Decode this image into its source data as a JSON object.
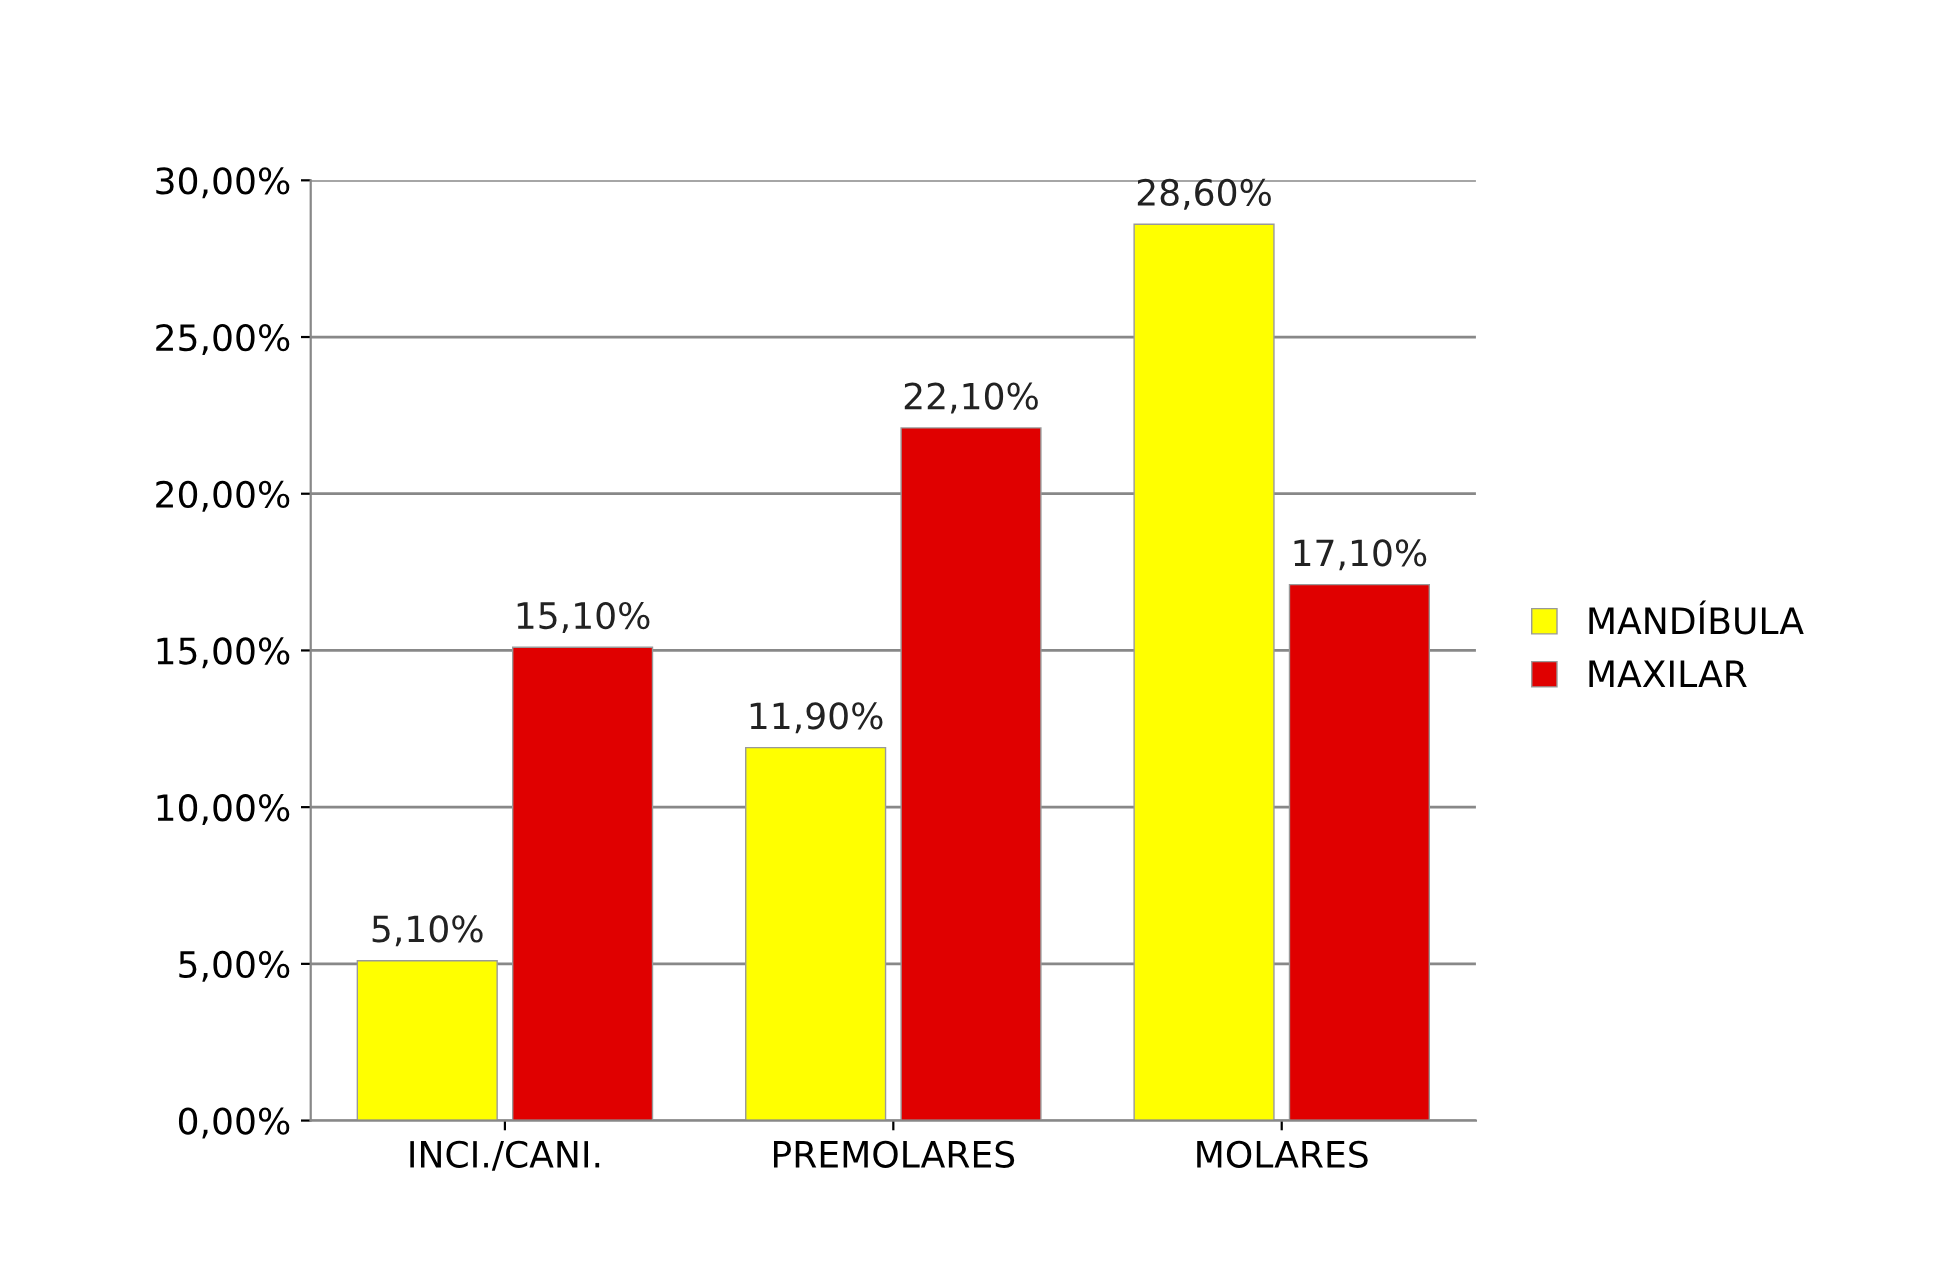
{
  "chart_data": {
    "type": "bar",
    "categories": [
      "INCI./CANI.",
      "PREMOLARES",
      "MOLARES"
    ],
    "series": [
      {
        "name": "MANDÍBULA",
        "color": "#ffff00",
        "values": [
          5.1,
          11.9,
          28.6
        ],
        "value_labels": [
          "5,10%",
          "11,90%",
          "28,60%"
        ]
      },
      {
        "name": "MAXILAR",
        "color": "#e00000",
        "values": [
          15.1,
          22.1,
          17.1
        ],
        "value_labels": [
          "15,10%",
          "22,10%",
          "17,10%"
        ]
      }
    ],
    "ylim": [
      0,
      30
    ],
    "yticks": [
      {
        "value": 0,
        "label": "0,00%"
      },
      {
        "value": 5,
        "label": "5,00%"
      },
      {
        "value": 10,
        "label": "10,00%"
      },
      {
        "value": 15,
        "label": "15,00%"
      },
      {
        "value": 20,
        "label": "20,00%"
      },
      {
        "value": 25,
        "label": "25,00%"
      },
      {
        "value": 30,
        "label": "30,00%"
      }
    ],
    "grid": "y",
    "legend": "right"
  }
}
